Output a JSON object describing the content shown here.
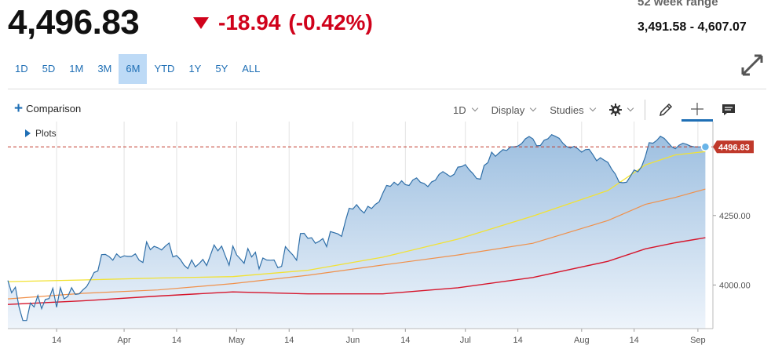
{
  "quote": {
    "price": "4,496.83",
    "change": "-18.94",
    "change_pct": "(-0.42%)",
    "range_label": "52 week range",
    "range_value": "3,491.58 - 4,607.07"
  },
  "periods": [
    {
      "label": "1D"
    },
    {
      "label": "5D"
    },
    {
      "label": "1M"
    },
    {
      "label": "3M"
    },
    {
      "label": "6M",
      "active": true
    },
    {
      "label": "YTD"
    },
    {
      "label": "1Y"
    },
    {
      "label": "5Y"
    },
    {
      "label": "ALL"
    }
  ],
  "toolbar": {
    "comparison_label": "Comparison",
    "interval_label": "1D",
    "display_label": "Display",
    "studies_label": "Studies",
    "plots_label": "Plots"
  },
  "colors": {
    "price_line": "#2f6fa8",
    "area_top": "#9dbfe0",
    "area_bottom": "#eef4fb",
    "ma_yellow": "#f2e233",
    "ma_orange": "#f0904a",
    "ma_red": "#d6152b",
    "last_price": "#c0392b",
    "accent": "#1f6fb5"
  },
  "chart_data": {
    "type": "line",
    "x_ticks": [
      "14",
      "Apr",
      "14",
      "May",
      "14",
      "Jun",
      "14",
      "Jul",
      "14",
      "Aug",
      "14",
      "Sep"
    ],
    "x_tick_days": [
      13,
      31,
      45,
      61,
      75,
      92,
      106,
      122,
      136,
      153,
      167,
      184
    ],
    "y_ticks": [
      4000,
      4250
    ],
    "y_tick_labels": [
      "4000.00",
      "4250.00"
    ],
    "ylim": [
      3843,
      4588
    ],
    "xlim_days": [
      0,
      188
    ],
    "last_price": 4496.83,
    "last_price_label": "4496.83",
    "grid": "vertical",
    "series": [
      {
        "key": "price",
        "x": [
          0,
          1,
          2,
          3,
          4,
          5,
          6,
          7,
          8,
          9,
          10,
          11,
          12,
          13,
          14,
          15,
          16,
          17,
          18,
          19,
          20,
          21,
          22,
          23,
          24,
          25,
          26,
          27,
          28,
          29,
          30,
          31,
          32,
          33,
          34,
          35,
          36,
          37,
          38,
          39,
          40,
          41,
          42,
          43,
          44,
          45,
          46,
          47,
          48,
          49,
          50,
          51,
          52,
          53,
          54,
          55,
          56,
          57,
          58,
          59,
          60,
          61,
          62,
          63,
          64,
          65,
          66,
          67,
          68,
          69,
          70,
          71,
          72,
          73,
          74,
          75,
          76,
          77,
          78,
          79,
          80,
          81,
          82,
          83,
          84,
          85,
          86,
          87,
          88,
          89,
          90,
          91,
          92,
          93,
          94,
          95,
          96,
          97,
          98,
          99,
          100,
          101,
          102,
          103,
          104,
          105,
          106,
          107,
          108,
          109,
          110,
          111,
          112,
          113,
          114,
          115,
          116,
          117,
          118,
          119,
          120,
          121,
          122,
          123,
          124,
          125,
          126,
          127,
          128,
          129,
          130,
          131,
          132,
          133,
          134,
          135,
          136,
          137,
          138,
          139,
          140,
          141,
          142,
          143,
          144,
          145,
          146,
          147,
          148,
          149,
          150,
          151,
          152,
          153,
          154,
          155,
          156,
          157,
          158,
          159,
          160,
          161,
          162,
          163,
          164,
          165,
          166,
          167,
          168,
          169,
          170,
          171,
          172,
          173,
          174,
          175,
          176,
          177,
          178,
          179,
          180,
          181,
          182,
          183,
          184,
          185,
          186
        ],
        "y": [
          4016,
          3972,
          3992,
          3920,
          3872,
          3872,
          3935,
          3921,
          3962,
          3915,
          3948,
          3951,
          3988,
          3920,
          3990,
          3950,
          3959,
          3990,
          3966,
          3968,
          3982,
          3994,
          4018,
          4045,
          4050,
          4109,
          4110,
          4102,
          4089,
          4112,
          4099,
          4105,
          4103,
          4103,
          4112,
          4089,
          4081,
          4155,
          4127,
          4139,
          4134,
          4126,
          4140,
          4151,
          4101,
          4106,
          4092,
          4071,
          4059,
          4090,
          4065,
          4077,
          4092,
          4070,
          4106,
          4144,
          4123,
          4140,
          4105,
          4071,
          4140,
          4108,
          4094,
          4078,
          4131,
          4101,
          4118,
          4058,
          4097,
          4090,
          4089,
          4090,
          4062,
          4067,
          4138,
          4122,
          4108,
          4089,
          4185,
          4186,
          4168,
          4170,
          4150,
          4157,
          4167,
          4138,
          4192,
          4188,
          4184,
          4175,
          4229,
          4276,
          4273,
          4289,
          4271,
          4259,
          4283,
          4275,
          4290,
          4299,
          4331,
          4358,
          4355,
          4370,
          4359,
          4375,
          4361,
          4358,
          4378,
          4385,
          4370,
          4365,
          4354,
          4371,
          4377,
          4398,
          4408,
          4399,
          4390,
          4398,
          4424,
          4426,
          4433,
          4415,
          4401,
          4383,
          4381,
          4430,
          4440,
          4478,
          4463,
          4475,
          4487,
          4484,
          4497,
          4497,
          4500,
          4509,
          4526,
          4534,
          4526,
          4501,
          4502,
          4521,
          4526,
          4541,
          4535,
          4528,
          4510,
          4498,
          4493,
          4499,
          4490,
          4478,
          4487,
          4488,
          4469,
          4447,
          4458,
          4449,
          4441,
          4417,
          4399,
          4370,
          4368,
          4370,
          4391,
          4414,
          4407,
          4426,
          4462,
          4512,
          4510,
          4520,
          4535,
          4528,
          4513,
          4497,
          4490,
          4503,
          4510,
          4506,
          4500,
          4497,
          4496.83,
          4496.83,
          4496.83
        ]
      },
      {
        "key": "ma_yellow",
        "x": [
          0,
          20,
          40,
          60,
          80,
          100,
          120,
          140,
          160,
          170,
          178,
          186
        ],
        "y": [
          4012,
          4018,
          4025,
          4030,
          4053,
          4100,
          4165,
          4248,
          4340,
          4432,
          4468,
          4480
        ]
      },
      {
        "key": "ma_orange",
        "x": [
          0,
          20,
          40,
          60,
          80,
          100,
          120,
          140,
          160,
          170,
          178,
          186
        ],
        "y": [
          3950,
          3970,
          3982,
          4005,
          4035,
          4072,
          4108,
          4150,
          4232,
          4290,
          4315,
          4345
        ]
      },
      {
        "key": "ma_red",
        "x": [
          0,
          20,
          40,
          60,
          80,
          100,
          120,
          140,
          160,
          170,
          178,
          186
        ],
        "y": [
          3930,
          3943,
          3960,
          3975,
          3968,
          3968,
          3990,
          4027,
          4085,
          4130,
          4152,
          4170
        ]
      }
    ]
  }
}
